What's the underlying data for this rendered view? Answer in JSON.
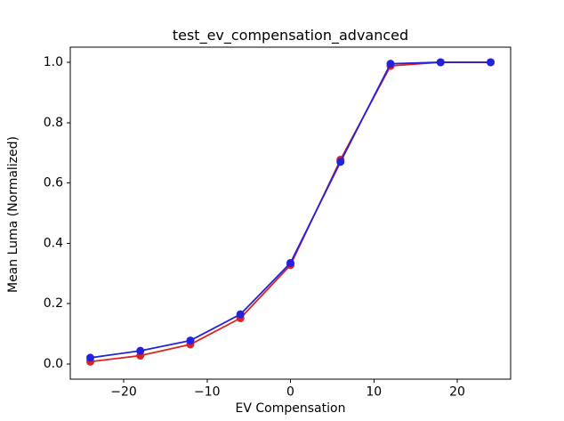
{
  "figure": {
    "background": "#ffffff",
    "frame_color": "#000000",
    "text_color": "#000000"
  },
  "chart_data": {
    "type": "line",
    "title": "test_ev_compensation_advanced",
    "xlabel": "EV Compensation",
    "ylabel": "Mean Luma (Normalized)",
    "x": [
      -24,
      -18,
      -12,
      -6,
      0,
      6,
      12,
      18,
      24
    ],
    "series": [
      {
        "name": "red-line",
        "color": "#dd2222",
        "marker": "circle",
        "values": [
          0.008,
          0.028,
          0.065,
          0.152,
          0.328,
          0.677,
          0.988,
          1.0,
          1.0
        ]
      },
      {
        "name": "blue-line",
        "color": "#2222dd",
        "marker": "circle",
        "values": [
          0.021,
          0.044,
          0.078,
          0.165,
          0.335,
          0.67,
          0.995,
          1.0,
          1.0
        ]
      }
    ],
    "xlim": [
      -26.4,
      26.4
    ],
    "ylim": [
      -0.05,
      1.05
    ],
    "xticks": [
      -20,
      -10,
      0,
      10,
      20
    ],
    "xtick_labels": [
      "−20",
      "−10",
      "0",
      "10",
      "20"
    ],
    "yticks": [
      0.0,
      0.2,
      0.4,
      0.6,
      0.8,
      1.0
    ],
    "ytick_labels": [
      "0.0",
      "0.2",
      "0.4",
      "0.6",
      "0.8",
      "1.0"
    ],
    "grid": false,
    "legend": null
  }
}
